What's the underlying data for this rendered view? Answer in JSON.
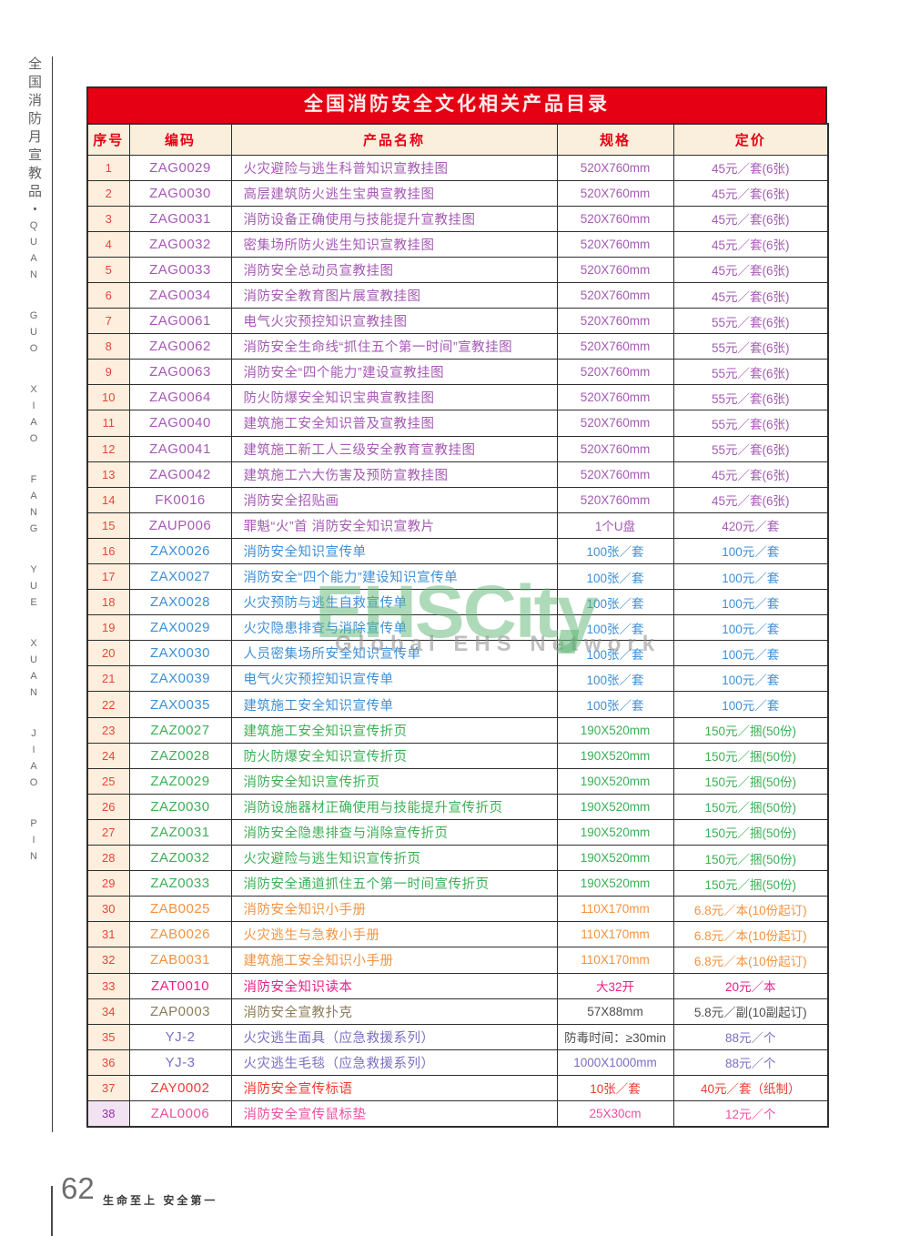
{
  "page": {
    "sidebar_cn": "全国消防月宣教品・",
    "sidebar_en": "QUAN GUO XIAO FANG YUE XUAN JIAO PIN",
    "page_number": "62",
    "footer_slogan": "生命至上 安全第一"
  },
  "watermark": {
    "line1": "EHSCity",
    "line2": "Global EHS Network",
    "accent_green": "#5db573"
  },
  "table": {
    "title": "全国消防安全文化相关产品目录",
    "headers": [
      "序号",
      "编码",
      "产品名称",
      "规格",
      "定价"
    ],
    "colors": {
      "title_bg": "#e60013",
      "title_text": "#ffecec",
      "header_bg": "#faeedc",
      "header_text": "#e60013",
      "no_bg": "#fdeedd",
      "no_text": "#e5463c",
      "border": "#2e2e2e",
      "groups": {
        "purple": "#a55ab4",
        "blue": "#3d8fd8",
        "green": "#3cb055",
        "orange": "#f6923e",
        "magenta": "#e6218a",
        "khaki": "#8d7c58",
        "slate": "#7a6ec2",
        "red": "#ee3c30",
        "pink": "#f04fa0",
        "dark": "#4d4d4d"
      }
    },
    "rows": [
      {
        "no": "1",
        "code": "ZAG0029",
        "name": "火灾避险与逃生科普知识宣教挂图",
        "spec": "520X760mm",
        "price": "45元／套(6张)",
        "c": "purple"
      },
      {
        "no": "2",
        "code": "ZAG0030",
        "name": "高层建筑防火逃生宝典宣教挂图",
        "spec": "520X760mm",
        "price": "45元／套(6张)",
        "c": "purple"
      },
      {
        "no": "3",
        "code": "ZAG0031",
        "name": "消防设备正确使用与技能提升宣教挂图",
        "spec": "520X760mm",
        "price": "45元／套(6张)",
        "c": "purple"
      },
      {
        "no": "4",
        "code": "ZAG0032",
        "name": "密集场所防火逃生知识宣教挂图",
        "spec": "520X760mm",
        "price": "45元／套(6张)",
        "c": "purple"
      },
      {
        "no": "5",
        "code": "ZAG0033",
        "name": "消防安全总动员宣教挂图",
        "spec": "520X760mm",
        "price": "45元／套(6张)",
        "c": "purple"
      },
      {
        "no": "6",
        "code": "ZAG0034",
        "name": "消防安全教育图片展宣教挂图",
        "spec": "520X760mm",
        "price": "45元／套(6张)",
        "c": "purple"
      },
      {
        "no": "7",
        "code": "ZAG0061",
        "name": "电气火灾预控知识宣教挂图",
        "spec": "520X760mm",
        "price": "55元／套(6张)",
        "c": "purple"
      },
      {
        "no": "8",
        "code": "ZAG0062",
        "name": "消防安全生命线“抓住五个第一时间”宣教挂图",
        "spec": "520X760mm",
        "price": "55元／套(6张)",
        "c": "purple"
      },
      {
        "no": "9",
        "code": "ZAG0063",
        "name": "消防安全“四个能力”建设宣教挂图",
        "spec": "520X760mm",
        "price": "55元／套(6张)",
        "c": "purple"
      },
      {
        "no": "10",
        "code": "ZAG0064",
        "name": "防火防爆安全知识宝典宣教挂图",
        "spec": "520X760mm",
        "price": "55元／套(6张)",
        "c": "purple"
      },
      {
        "no": "11",
        "code": "ZAG0040",
        "name": "建筑施工安全知识普及宣教挂图",
        "spec": "520X760mm",
        "price": "55元／套(6张)",
        "c": "purple"
      },
      {
        "no": "12",
        "code": "ZAG0041",
        "name": "建筑施工新工人三级安全教育宣教挂图",
        "spec": "520X760mm",
        "price": "55元／套(6张)",
        "c": "purple"
      },
      {
        "no": "13",
        "code": "ZAG0042",
        "name": "建筑施工六大伤害及预防宣教挂图",
        "spec": "520X760mm",
        "price": "45元／套(6张)",
        "c": "purple"
      },
      {
        "no": "14",
        "code": "FK0016",
        "name": "消防安全招贴画",
        "spec": "520X760mm",
        "price": "45元／套(6张)",
        "c": "purple"
      },
      {
        "no": "15",
        "code": "ZAUP006",
        "name": "罪魁“火”首 消防安全知识宣教片",
        "spec": "1个U盘",
        "price": "420元／套",
        "c": "purple"
      },
      {
        "no": "16",
        "code": "ZAX0026",
        "name": "消防安全知识宣传单",
        "spec": "100张／套",
        "price": "100元／套",
        "c": "blue"
      },
      {
        "no": "17",
        "code": "ZAX0027",
        "name": "消防安全“四个能力”建设知识宣传单",
        "spec": "100张／套",
        "price": "100元／套",
        "c": "blue"
      },
      {
        "no": "18",
        "code": "ZAX0028",
        "name": "火灾预防与逃生自救宣传单",
        "spec": "100张／套",
        "price": "100元／套",
        "c": "blue"
      },
      {
        "no": "19",
        "code": "ZAX0029",
        "name": "火灾隐患排查与消除宣传单",
        "spec": "100张／套",
        "price": "100元／套",
        "c": "blue"
      },
      {
        "no": "20",
        "code": "ZAX0030",
        "name": "人员密集场所安全知识宣传单",
        "spec": "100张／套",
        "price": "100元／套",
        "c": "blue"
      },
      {
        "no": "21",
        "code": "ZAX0039",
        "name": "电气火灾预控知识宣传单",
        "spec": "100张／套",
        "price": "100元／套",
        "c": "blue"
      },
      {
        "no": "22",
        "code": "ZAX0035",
        "name": "建筑施工安全知识宣传单",
        "spec": "100张／套",
        "price": "100元／套",
        "c": "blue"
      },
      {
        "no": "23",
        "code": "ZAZ0027",
        "name": "建筑施工安全知识宣传折页",
        "spec": "190X520mm",
        "price": "150元／捆(50份)",
        "c": "green"
      },
      {
        "no": "24",
        "code": "ZAZ0028",
        "name": "防火防爆安全知识宣传折页",
        "spec": "190X520mm",
        "price": "150元／捆(50份)",
        "c": "green"
      },
      {
        "no": "25",
        "code": "ZAZ0029",
        "name": "消防安全知识宣传折页",
        "spec": "190X520mm",
        "price": "150元／捆(50份)",
        "c": "green"
      },
      {
        "no": "26",
        "code": "ZAZ0030",
        "name": "消防设施器材正确使用与技能提升宣传折页",
        "spec": "190X520mm",
        "price": "150元／捆(50份)",
        "c": "green"
      },
      {
        "no": "27",
        "code": "ZAZ0031",
        "name": "消防安全隐患排查与消除宣传折页",
        "spec": "190X520mm",
        "price": "150元／捆(50份)",
        "c": "green"
      },
      {
        "no": "28",
        "code": "ZAZ0032",
        "name": "火灾避险与逃生知识宣传折页",
        "spec": "190X520mm",
        "price": "150元／捆(50份)",
        "c": "green"
      },
      {
        "no": "29",
        "code": "ZAZ0033",
        "name": "消防安全通道抓住五个第一时间宣传折页",
        "spec": "190X520mm",
        "price": "150元／捆(50份)",
        "c": "green"
      },
      {
        "no": "30",
        "code": "ZAB0025",
        "name": "消防安全知识小手册",
        "spec": "110X170mm",
        "price": "6.8元／本(10份起订)",
        "c": "orange"
      },
      {
        "no": "31",
        "code": "ZAB0026",
        "name": "火灾逃生与急救小手册",
        "spec": "110X170mm",
        "price": "6.8元／本(10份起订)",
        "c": "orange"
      },
      {
        "no": "32",
        "code": "ZAB0031",
        "name": "建筑施工安全知识小手册",
        "spec": "110X170mm",
        "price": "6.8元／本(10份起订)",
        "c": "orange"
      },
      {
        "no": "33",
        "code": "ZAT0010",
        "name": "消防安全知识读本",
        "spec": "大32开",
        "price": "20元／本",
        "c": "magenta"
      },
      {
        "no": "34",
        "code": "ZAP0003",
        "name": "消防安全宣教扑克",
        "spec": "57X88mm",
        "price": "5.8元／副(10副起订)",
        "c": "khaki",
        "spec_c": "dark",
        "price_c": "dark"
      },
      {
        "no": "35",
        "code": "YJ-2",
        "name": "火灾逃生面具（应急救援系列）",
        "spec": "防毒时间：≥30min",
        "price": "88元／个",
        "c": "slate",
        "spec_c": "dark"
      },
      {
        "no": "36",
        "code": "YJ-3",
        "name": "火灾逃生毛毯（应急救援系列）",
        "spec": "1000X1000mm",
        "price": "88元／个",
        "c": "slate"
      },
      {
        "no": "37",
        "code": "ZAY0002",
        "name": "消防安全宣传标语",
        "spec": "10张／套",
        "price": "40元／套（纸制）",
        "c": "red"
      },
      {
        "no": "38",
        "code": "ZAL0006",
        "name": "消防安全宣传鼠标垫",
        "spec": "25X30cm",
        "price": "12元／个",
        "c": "pink",
        "no_c": "#9332a8",
        "no_bg": "#f2e3f2"
      }
    ]
  }
}
